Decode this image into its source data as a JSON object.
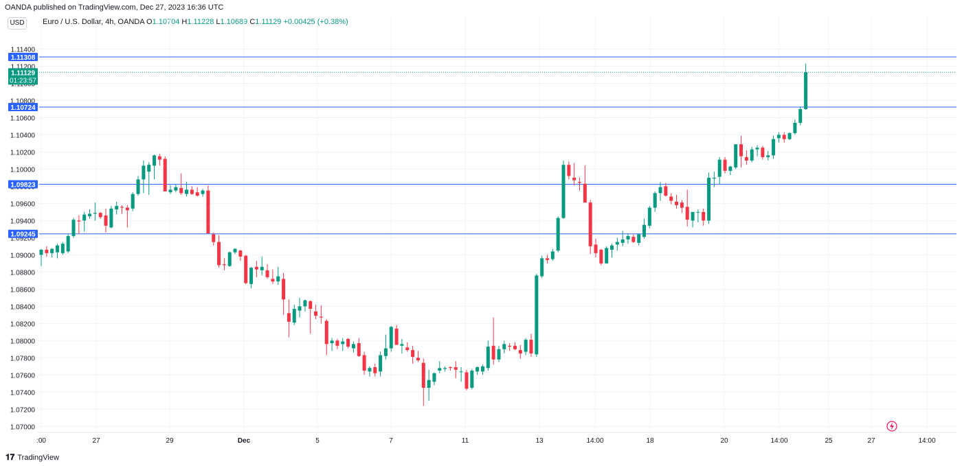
{
  "header": {
    "published": "OANDA published on TradingView.com, Dec 27, 2023 16:36 UTC"
  },
  "currency_badge": "USD",
  "legend": {
    "symbol": "Euro / U.S. Dollar, 4h, OANDA",
    "o_label": "O",
    "o_value": "1.10704",
    "h_label": "H",
    "h_value": "1.11228",
    "l_label": "L",
    "l_value": "1.10689",
    "c_label": "C",
    "c_value": "1.11129",
    "change": "+0.00425 (+0.38%)"
  },
  "colors": {
    "up": "#089981",
    "down": "#f23645",
    "hline": "#2962ff",
    "grid": "#f0f3fa",
    "text": "#131722"
  },
  "footer": {
    "brand": "TradingView"
  },
  "chart_data": {
    "type": "candlestick",
    "title": "",
    "ylim": [
      1.0693,
      1.1162
    ],
    "y_ticks": [
      "1.07000",
      "1.07200",
      "1.07400",
      "1.07600",
      "1.07800",
      "1.08000",
      "1.08200",
      "1.08400",
      "1.08600",
      "1.08800",
      "1.09000",
      "1.09200",
      "1.09400",
      "1.09600",
      "1.09800",
      "1.10000",
      "1.10200",
      "1.10400",
      "1.10600",
      "1.10800",
      "1.11000",
      "1.11200",
      "1.11400"
    ],
    "x_ticks": [
      ":00",
      "27",
      "29",
      "Dec",
      "5",
      "7",
      "11",
      "13",
      "14:00",
      "18",
      "20",
      "14:00",
      "25",
      "27",
      "14:00"
    ],
    "horizontal_lines": [
      {
        "label": "1.11308",
        "value": 1.11308
      },
      {
        "label": "1.10724",
        "value": 1.10724
      },
      {
        "label": "1.09823",
        "value": 1.09823
      },
      {
        "label": "1.09245",
        "value": 1.09245
      }
    ],
    "last_price": {
      "label": "1.11129",
      "countdown": "01:23:57",
      "value": 1.11129
    },
    "candles": [
      [
        1.09,
        1.0907,
        1.0887,
        1.0906
      ],
      [
        1.0906,
        1.091,
        1.0898,
        1.0902
      ],
      [
        1.0902,
        1.0908,
        1.0897,
        1.0907
      ],
      [
        1.0903,
        1.0913,
        1.0896,
        1.0911
      ],
      [
        1.0902,
        1.0915,
        1.09,
        1.0913
      ],
      [
        1.0904,
        1.0924,
        1.0902,
        1.0922
      ],
      [
        1.0922,
        1.0943,
        1.092,
        1.0941
      ],
      [
        1.094,
        1.0946,
        1.0924,
        1.0939
      ],
      [
        1.094,
        1.095,
        1.0927,
        1.0947
      ],
      [
        1.0945,
        1.0953,
        1.0942,
        1.0948
      ],
      [
        1.0948,
        1.0961,
        1.094,
        1.0949
      ],
      [
        1.0949,
        1.095,
        1.0942,
        1.0944
      ],
      [
        1.0946,
        1.0954,
        1.0926,
        1.0934
      ],
      [
        1.0932,
        1.0957,
        1.0931,
        1.0954
      ],
      [
        1.0953,
        1.0962,
        1.0947,
        1.0957
      ],
      [
        1.0956,
        1.0958,
        1.0948,
        1.0955
      ],
      [
        1.0955,
        1.0958,
        1.0932,
        1.0952
      ],
      [
        1.0954,
        1.0973,
        1.0951,
        1.0971
      ],
      [
        1.0971,
        1.0992,
        1.0969,
        1.0988
      ],
      [
        1.0988,
        1.101,
        1.0972,
        1.1004
      ],
      [
        1.0997,
        1.1008,
        1.097,
        1.1005
      ],
      [
        1.1004,
        1.1017,
        1.0988,
        1.1016
      ],
      [
        1.1015,
        1.1018,
        1.1004,
        1.1011
      ],
      [
        1.1012,
        1.1015,
        1.0977,
        1.0974
      ],
      [
        1.0973,
        1.0981,
        1.0971,
        1.0976
      ],
      [
        1.0975,
        1.0983,
        1.0973,
        1.0979
      ],
      [
        1.0978,
        1.0995,
        1.097,
        1.0972
      ],
      [
        1.0971,
        1.0985,
        1.0968,
        1.0976
      ],
      [
        1.0976,
        1.098,
        1.097,
        1.0971
      ],
      [
        1.0973,
        1.0979,
        1.0968,
        1.0969
      ],
      [
        1.0971,
        1.0977,
        1.0968,
        1.0975
      ],
      [
        1.0975,
        1.0981,
        1.0925,
        1.0925
      ],
      [
        1.0924,
        1.0926,
        1.0911,
        1.0915
      ],
      [
        1.0915,
        1.0923,
        1.0885,
        1.0888
      ],
      [
        1.0889,
        1.0896,
        1.0882,
        1.0888
      ],
      [
        1.0887,
        1.0904,
        1.0886,
        1.0903
      ],
      [
        1.0903,
        1.0908,
        1.0901,
        1.0907
      ],
      [
        1.0905,
        1.0906,
        1.0893,
        1.0898
      ],
      [
        1.0899,
        1.09,
        1.0866,
        1.0867
      ],
      [
        1.0866,
        1.0886,
        1.0861,
        1.0885
      ],
      [
        1.0886,
        1.0893,
        1.0874,
        1.0883
      ],
      [
        1.0882,
        1.0898,
        1.0876,
        1.0886
      ],
      [
        1.0882,
        1.0889,
        1.0872,
        1.0874
      ],
      [
        1.0872,
        1.0883,
        1.0866,
        1.0869
      ],
      [
        1.0869,
        1.0886,
        1.0865,
        1.0875
      ],
      [
        1.0872,
        1.0879,
        1.083,
        1.0848
      ],
      [
        1.0832,
        1.0848,
        1.0804,
        1.0822
      ],
      [
        1.0821,
        1.0842,
        1.0818,
        1.0837
      ],
      [
        1.0835,
        1.085,
        1.0827,
        1.084
      ],
      [
        1.084,
        1.0848,
        1.0834,
        1.0847
      ],
      [
        1.0846,
        1.0847,
        1.0808,
        1.0837
      ],
      [
        1.0834,
        1.0842,
        1.0825,
        1.0829
      ],
      [
        1.0828,
        1.0841,
        1.082,
        1.0827
      ],
      [
        1.0823,
        1.0825,
        1.0783,
        1.0796
      ],
      [
        1.0797,
        1.0803,
        1.0788,
        1.08
      ],
      [
        1.08,
        1.0802,
        1.079,
        1.0794
      ],
      [
        1.0796,
        1.0803,
        1.0788,
        1.0799
      ],
      [
        1.0802,
        1.0803,
        1.0791,
        1.0793
      ],
      [
        1.0791,
        1.0799,
        1.0786,
        1.0796
      ],
      [
        1.0797,
        1.0803,
        1.0781,
        1.0782
      ],
      [
        1.0783,
        1.0787,
        1.076,
        1.0765
      ],
      [
        1.0764,
        1.077,
        1.0758,
        1.0768
      ],
      [
        1.0769,
        1.0773,
        1.0758,
        1.0762
      ],
      [
        1.0764,
        1.0787,
        1.0758,
        1.0783
      ],
      [
        1.0782,
        1.0807,
        1.0778,
        1.0791
      ],
      [
        1.0791,
        1.0817,
        1.0787,
        1.0816
      ],
      [
        1.0814,
        1.0818,
        1.0795,
        1.0795
      ],
      [
        1.0794,
        1.0802,
        1.0785,
        1.0796
      ],
      [
        1.0792,
        1.0798,
        1.0787,
        1.0789
      ],
      [
        1.0789,
        1.0794,
        1.0773,
        1.0781
      ],
      [
        1.078,
        1.0788,
        1.0775,
        1.0777
      ],
      [
        1.0774,
        1.0779,
        1.0724,
        1.0745
      ],
      [
        1.0745,
        1.0766,
        1.073,
        1.0754
      ],
      [
        1.0752,
        1.0763,
        1.0748,
        1.0762
      ],
      [
        1.0765,
        1.0776,
        1.0762,
        1.0768
      ],
      [
        1.0767,
        1.077,
        1.0764,
        1.0768
      ],
      [
        1.0769,
        1.077,
        1.0765,
        1.0768
      ],
      [
        1.0769,
        1.0776,
        1.0756,
        1.0766
      ],
      [
        1.0764,
        1.0769,
        1.0752,
        1.0764
      ],
      [
        1.0763,
        1.0766,
        1.0742,
        1.0744
      ],
      [
        1.0745,
        1.0767,
        1.0743,
        1.0765
      ],
      [
        1.0764,
        1.077,
        1.076,
        1.0769
      ],
      [
        1.0764,
        1.0772,
        1.076,
        1.077
      ],
      [
        1.0768,
        1.08,
        1.0765,
        1.0793
      ],
      [
        1.0794,
        1.0827,
        1.0772,
        1.0778
      ],
      [
        1.0778,
        1.0794,
        1.0775,
        1.079
      ],
      [
        1.079,
        1.08,
        1.0785,
        1.0796
      ],
      [
        1.0794,
        1.0797,
        1.0788,
        1.0793
      ],
      [
        1.0794,
        1.0798,
        1.0789,
        1.079
      ],
      [
        1.0789,
        1.0795,
        1.0779,
        1.0785
      ],
      [
        1.0787,
        1.0803,
        1.0783,
        1.0801
      ],
      [
        1.0801,
        1.0808,
        1.0781,
        1.0785
      ],
      [
        1.0784,
        1.0878,
        1.0781,
        1.0876
      ],
      [
        1.0875,
        1.0899,
        1.0873,
        1.0896
      ],
      [
        1.0896,
        1.09,
        1.089,
        1.0894
      ],
      [
        1.0895,
        1.0907,
        1.0893,
        1.0904
      ],
      [
        1.0905,
        1.0945,
        1.0903,
        1.0943
      ],
      [
        1.0943,
        1.101,
        1.0942,
        1.1005
      ],
      [
        1.1005,
        1.1009,
        1.0988,
        1.0992
      ],
      [
        1.099,
        1.1007,
        1.0981,
        1.0987
      ],
      [
        1.0985,
        1.099,
        1.0975,
        1.0984
      ],
      [
        1.0983,
        1.1004,
        1.0961,
        1.0961
      ],
      [
        1.0961,
        1.0964,
        1.0901,
        1.091
      ],
      [
        1.0912,
        1.0919,
        1.0897,
        1.0902
      ],
      [
        1.0906,
        1.0907,
        1.0888,
        1.089
      ],
      [
        1.089,
        1.091,
        1.089,
        1.0908
      ],
      [
        1.0906,
        1.0913,
        1.0897,
        1.0911
      ],
      [
        1.0912,
        1.092,
        1.0905,
        1.0915
      ],
      [
        1.0914,
        1.0928,
        1.091,
        1.0918
      ],
      [
        1.0918,
        1.0925,
        1.0913,
        1.0922
      ],
      [
        1.0921,
        1.0924,
        1.0914,
        1.0915
      ],
      [
        1.0914,
        1.0925,
        1.0911,
        1.0924
      ],
      [
        1.0921,
        1.0942,
        1.0919,
        1.0935
      ],
      [
        1.0934,
        1.0957,
        1.0931,
        1.0955
      ],
      [
        1.0955,
        1.0974,
        1.095,
        1.0972
      ],
      [
        1.0972,
        1.0985,
        1.0963,
        1.0979
      ],
      [
        1.098,
        1.0984,
        1.0968,
        1.0969
      ],
      [
        1.0968,
        1.0972,
        1.0959,
        1.0963
      ],
      [
        1.0962,
        1.097,
        1.0954,
        1.0958
      ],
      [
        1.0961,
        1.0964,
        1.0949,
        1.0955
      ],
      [
        1.0956,
        1.0976,
        1.0933,
        1.0941
      ],
      [
        1.094,
        1.095,
        1.0932,
        1.095
      ],
      [
        1.095,
        1.0953,
        1.0938,
        1.095
      ],
      [
        1.095,
        1.0954,
        1.0934,
        1.094
      ],
      [
        1.094,
        1.0996,
        1.0936,
        1.099
      ],
      [
        1.0989,
        1.0997,
        1.0979,
        1.099
      ],
      [
        1.0991,
        1.1014,
        1.0982,
        1.1011
      ],
      [
        1.1011,
        1.1014,
        1.0995,
        1.0998
      ],
      [
        1.0998,
        1.1004,
        1.0993,
        1.1003
      ],
      [
        1.1002,
        1.1028,
        1.1,
        1.1029
      ],
      [
        1.1029,
        1.1039,
        1.1002,
        1.1015
      ],
      [
        1.1014,
        1.1022,
        1.1005,
        1.101
      ],
      [
        1.101,
        1.1026,
        1.1008,
        1.1023
      ],
      [
        1.1023,
        1.1028,
        1.1015,
        1.1025
      ],
      [
        1.1025,
        1.1027,
        1.1011,
        1.1014
      ],
      [
        1.1014,
        1.1021,
        1.101,
        1.1016
      ],
      [
        1.1016,
        1.1039,
        1.1012,
        1.1035
      ],
      [
        1.1036,
        1.1043,
        1.1031,
        1.104
      ],
      [
        1.104,
        1.1043,
        1.1031,
        1.1035
      ],
      [
        1.1035,
        1.1043,
        1.1034,
        1.1042
      ],
      [
        1.1042,
        1.1058,
        1.104,
        1.1054
      ],
      [
        1.1054,
        1.1073,
        1.1051,
        1.107
      ],
      [
        1.107,
        1.1123,
        1.1069,
        1.1113
      ]
    ]
  }
}
